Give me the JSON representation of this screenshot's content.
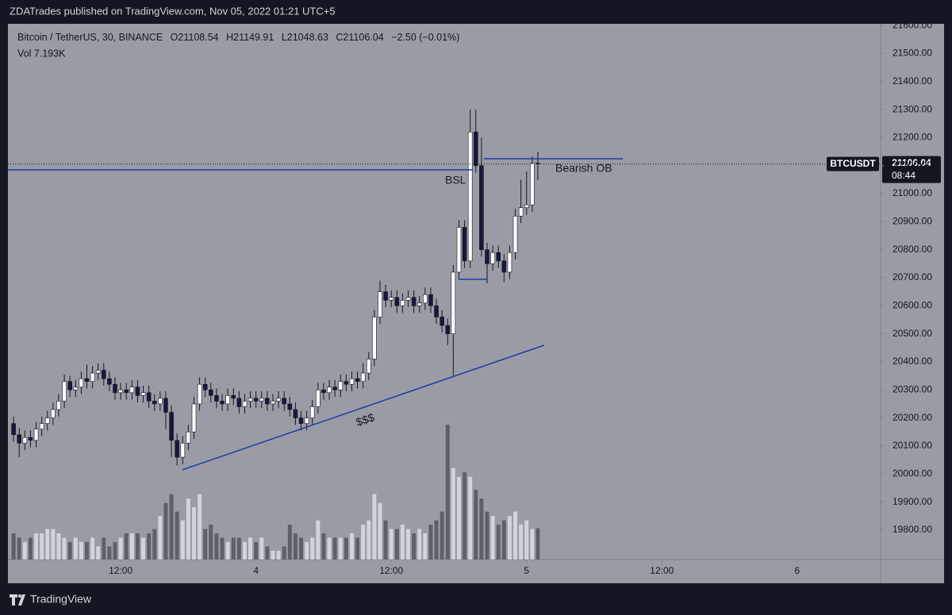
{
  "header": {
    "title": "ZDATrades published on TradingView.com, Nov 05, 2022 01:21 UTC+5"
  },
  "footer": {
    "brand": "TradingView"
  },
  "chart_data": {
    "type": "candlestick",
    "legend": {
      "symbol": "Bitcoin / TetherUS, 30, BINANCE",
      "open": "O21108.54",
      "high": "H21149.91",
      "low": "L21048.63",
      "close": "C21106.04",
      "change": "−2.50 (−0.01%)",
      "volume": "Vol  7.193K"
    },
    "annotations": [
      "BSL",
      "Bearish OB",
      "$$$"
    ],
    "last_price": {
      "ticker": "BTCUSDT",
      "price": "21106.04",
      "countdown": "08:44"
    },
    "x": [
      2.5,
      3,
      3.5,
      4,
      4.5,
      5,
      5.5,
      6,
      6.5,
      7,
      7.5,
      8,
      8.5,
      9,
      9.5,
      10,
      10.5,
      11,
      11.5,
      12,
      12.5,
      13,
      13.5,
      14,
      14.5,
      15,
      15.5,
      16,
      16.5,
      17,
      17.5,
      18,
      18.5,
      19,
      19.5,
      20,
      20.5,
      21,
      21.5,
      22,
      22.5,
      23,
      23.5,
      24,
      24.5,
      25,
      25.5,
      26,
      26.5,
      27,
      27.5,
      28,
      28.5,
      29,
      29.5,
      30,
      30.5,
      31,
      31.5,
      32,
      32.5,
      33,
      33.5,
      34,
      34.5,
      35,
      35.5,
      36,
      36.5,
      37,
      37.5,
      38,
      38.5,
      39,
      39.5,
      40,
      40.5,
      41,
      41.5,
      42,
      42.5,
      43,
      43.5,
      44,
      44.5,
      45,
      45.5,
      46,
      46.5,
      47,
      47.5,
      48,
      48.5,
      49
    ],
    "open": [
      20180,
      20140,
      20110,
      20130,
      20120,
      20160,
      20180,
      20200,
      20230,
      20260,
      20330,
      20300,
      20310,
      20340,
      20330,
      20360,
      20370,
      20340,
      20320,
      20290,
      20300,
      20290,
      20310,
      20280,
      20290,
      20260,
      20250,
      20270,
      20220,
      20120,
      20060,
      20110,
      20150,
      20250,
      20320,
      20300,
      20280,
      20260,
      20250,
      20280,
      20270,
      20240,
      20260,
      20270,
      20260,
      20270,
      20250,
      20260,
      20270,
      20250,
      20230,
      20200,
      20180,
      20200,
      20240,
      20300,
      20290,
      20310,
      20300,
      20330,
      20320,
      20340,
      20330,
      20360,
      20410,
      20560,
      20650,
      20620,
      20630,
      20600,
      20620,
      20630,
      20600,
      20610,
      20640,
      20600,
      20560,
      20530,
      20500,
      20720,
      20880,
      20760,
      21220,
      21100,
      20800,
      20750,
      20790,
      20760,
      20720,
      20790,
      20920,
      20950,
      20960,
      21108.54
    ],
    "high": [
      20205,
      20165,
      20155,
      20155,
      20185,
      20205,
      20225,
      20255,
      20285,
      20355,
      20350,
      20335,
      20365,
      20390,
      20385,
      20395,
      20395,
      20365,
      20345,
      20325,
      20325,
      20335,
      20335,
      20315,
      20315,
      20285,
      20295,
      20295,
      20245,
      20145,
      20135,
      20175,
      20275,
      20345,
      20345,
      20325,
      20305,
      20285,
      20305,
      20305,
      20295,
      20285,
      20295,
      20295,
      20295,
      20295,
      20285,
      20295,
      20295,
      20275,
      20255,
      20225,
      20225,
      20265,
      20325,
      20325,
      20335,
      20335,
      20355,
      20355,
      20365,
      20365,
      20395,
      20435,
      20585,
      20690,
      20675,
      20655,
      20655,
      20645,
      20655,
      20655,
      20635,
      20665,
      20665,
      20625,
      20585,
      20555,
      20745,
      20905,
      20905,
      21300,
      21300,
      21200,
      20825,
      20815,
      20815,
      20785,
      20815,
      20945,
      21050,
      21080,
      21133,
      21149.91
    ],
    "low": [
      20115,
      20060,
      20085,
      20095,
      20095,
      20135,
      20155,
      20175,
      20205,
      20235,
      20275,
      20275,
      20285,
      20305,
      20305,
      20335,
      20315,
      20295,
      20265,
      20265,
      20265,
      20265,
      20255,
      20255,
      20235,
      20225,
      20225,
      20160,
      20060,
      20030,
      20035,
      20085,
      20125,
      20225,
      20275,
      20255,
      20235,
      20225,
      20225,
      20245,
      20215,
      20215,
      20235,
      20235,
      20235,
      20225,
      20225,
      20235,
      20225,
      20205,
      20175,
      20155,
      20155,
      20175,
      20215,
      20265,
      20265,
      20275,
      20275,
      20295,
      20295,
      20305,
      20305,
      20335,
      20385,
      20535,
      20595,
      20595,
      20575,
      20575,
      20595,
      20575,
      20575,
      20585,
      20575,
      20535,
      20505,
      20460,
      20350,
      20695,
      20735,
      20735,
      21075,
      20775,
      20680,
      20725,
      20735,
      20685,
      20695,
      20765,
      20895,
      20925,
      20935,
      21048.63
    ],
    "close": [
      20140,
      20110,
      20130,
      20120,
      20160,
      20180,
      20200,
      20230,
      20260,
      20330,
      20300,
      20310,
      20340,
      20330,
      20360,
      20370,
      20340,
      20320,
      20290,
      20300,
      20290,
      20310,
      20280,
      20290,
      20260,
      20250,
      20270,
      20220,
      20120,
      20060,
      20110,
      20150,
      20250,
      20320,
      20300,
      20280,
      20260,
      20250,
      20280,
      20270,
      20240,
      20260,
      20270,
      20260,
      20270,
      20250,
      20260,
      20270,
      20250,
      20230,
      20200,
      20180,
      20200,
      20240,
      20300,
      20290,
      20310,
      20300,
      20330,
      20320,
      20340,
      20330,
      20360,
      20410,
      20560,
      20650,
      20620,
      20630,
      20600,
      20620,
      20630,
      20600,
      20610,
      20640,
      20600,
      20560,
      20530,
      20500,
      20720,
      20880,
      20760,
      21220,
      21100,
      20800,
      20750,
      20790,
      20760,
      20720,
      20790,
      20920,
      20950,
      20960,
      21108.54,
      21106.04
    ],
    "volume": [
      6,
      5,
      4,
      5,
      6,
      6,
      7,
      7,
      6,
      5,
      4,
      5,
      4,
      4,
      5,
      3,
      5,
      3,
      4,
      5,
      6,
      6,
      6,
      5,
      6,
      7,
      10,
      13,
      15,
      11,
      9,
      14,
      12,
      15,
      7,
      8,
      6,
      5,
      4,
      5,
      5,
      4,
      5,
      4,
      5,
      3,
      2,
      2,
      3,
      8,
      6,
      5,
      4,
      5,
      9,
      6,
      5,
      5,
      5,
      5,
      6,
      5,
      8,
      9,
      15,
      13,
      9,
      7,
      7,
      8,
      7,
      6,
      7,
      6,
      8,
      9,
      11,
      31,
      21,
      19,
      20,
      19,
      16,
      14,
      11,
      10,
      8,
      9,
      10,
      11,
      8,
      9,
      7,
      7.193
    ],
    "up_color": "#ffffff",
    "down_color": "#131a3a",
    "wick_color": "#131722",
    "volume_up_color": "#d1d4dc",
    "volume_down_color": "#5d606b",
    "background": "#9a9ca5",
    "xlim": [
      2,
      79.4
    ],
    "xticks": [
      {
        "value": 12,
        "label": "12:00"
      },
      {
        "value": 24,
        "label": "4"
      },
      {
        "value": 36,
        "label": "12:00"
      },
      {
        "value": 48,
        "label": "5"
      },
      {
        "value": 60,
        "label": "12:00"
      },
      {
        "value": 72,
        "label": "6"
      }
    ],
    "ylim": [
      19695,
      21606
    ],
    "yticks": [
      {
        "value": 19800,
        "label": "19800.00"
      },
      {
        "value": 19900,
        "label": "19900.00"
      },
      {
        "value": 20000,
        "label": "20000.00"
      },
      {
        "value": 20100,
        "label": "20100.00"
      },
      {
        "value": 20200,
        "label": "20200.00"
      },
      {
        "value": 20300,
        "label": "20300.00"
      },
      {
        "value": 20400,
        "label": "20400.00"
      },
      {
        "value": 20500,
        "label": "20500.00"
      },
      {
        "value": 20600,
        "label": "20600.00"
      },
      {
        "value": 20700,
        "label": "20700.00"
      },
      {
        "value": 20800,
        "label": "20800.00"
      },
      {
        "value": 20900,
        "label": "20900.00"
      },
      {
        "value": 21000,
        "label": "21000.00"
      },
      {
        "value": 21100,
        "label": "21100.00"
      },
      {
        "value": 21200,
        "label": "21200.00"
      },
      {
        "value": 21300,
        "label": "21300.00"
      },
      {
        "value": 21400,
        "label": "21400.00"
      },
      {
        "value": 21500,
        "label": "21500.00"
      },
      {
        "value": 21600,
        "label": "21600.00"
      }
    ],
    "grid": false
  }
}
